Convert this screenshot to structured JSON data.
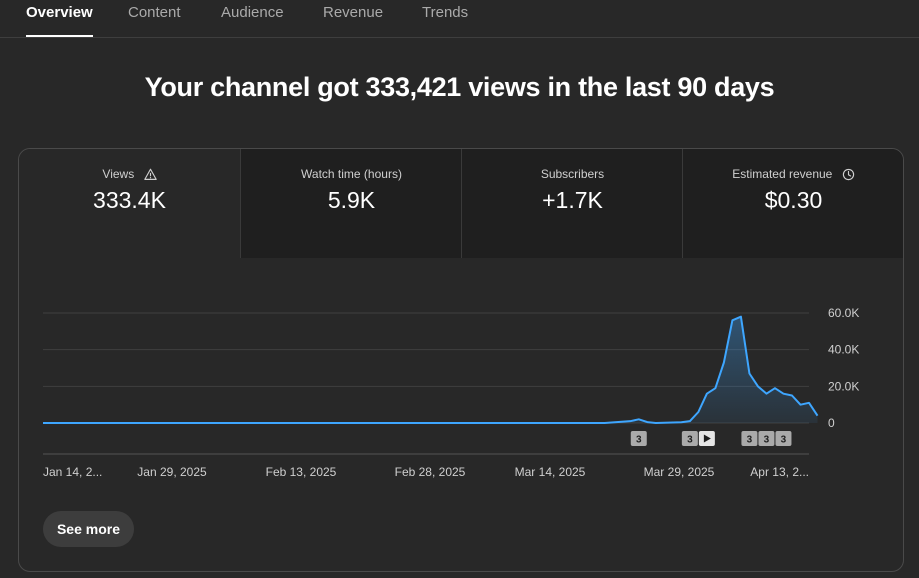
{
  "tabs": [
    {
      "label": "Overview",
      "active": true
    },
    {
      "label": "Content",
      "active": false
    },
    {
      "label": "Audience",
      "active": false
    },
    {
      "label": "Revenue",
      "active": false
    },
    {
      "label": "Trends",
      "active": false
    }
  ],
  "headline": "Your channel got 333,421 views in the last 90 days",
  "metrics": [
    {
      "label": "Views",
      "value": "333.4K",
      "icon": "warning-icon"
    },
    {
      "label": "Watch time (hours)",
      "value": "5.9K"
    },
    {
      "label": "Subscribers",
      "value": "+1.7K"
    },
    {
      "label": "Estimated revenue",
      "value": "$0.30",
      "icon": "clock-icon"
    }
  ],
  "chart_data": {
    "type": "area",
    "y_ticks": [
      "60.0K",
      "40.0K",
      "20.0K",
      "0"
    ],
    "ylim": [
      0,
      60000
    ],
    "x_ticks": [
      "Jan 14, 2...",
      "Jan 29, 2025",
      "Feb 13, 2025",
      "Feb 28, 2025",
      "Mar 14, 2025",
      "Mar 29, 2025",
      "Apr 13, 2..."
    ],
    "start_date": "2025-01-14",
    "end_date": "2025-04-14",
    "series": [
      {
        "color": "#3ea6ff",
        "points": [
          [
            "2025-01-14",
            0
          ],
          [
            "2025-03-21",
            0
          ],
          [
            "2025-03-24",
            1000
          ],
          [
            "2025-03-25",
            2000
          ],
          [
            "2025-03-26",
            500
          ],
          [
            "2025-03-27",
            0
          ],
          [
            "2025-03-30",
            400
          ],
          [
            "2025-03-31",
            1000
          ],
          [
            "2025-04-01",
            6000
          ],
          [
            "2025-04-02",
            16000
          ],
          [
            "2025-04-03",
            19000
          ],
          [
            "2025-04-04",
            33000
          ],
          [
            "2025-04-05",
            56000
          ],
          [
            "2025-04-06",
            58000
          ],
          [
            "2025-04-07",
            27000
          ],
          [
            "2025-04-08",
            20000
          ],
          [
            "2025-04-09",
            16000
          ],
          [
            "2025-04-10",
            19000
          ],
          [
            "2025-04-11",
            16000
          ],
          [
            "2025-04-12",
            15000
          ],
          [
            "2025-04-13",
            10000
          ],
          [
            "2025-04-14",
            11000
          ],
          [
            "2025-04-15",
            4000
          ]
        ]
      }
    ],
    "markers": [
      {
        "date": "2025-03-25",
        "label": "3",
        "kind": "upload"
      },
      {
        "date": "2025-03-31",
        "label": "3",
        "kind": "upload"
      },
      {
        "date": "2025-04-02",
        "label": "",
        "kind": "play"
      },
      {
        "date": "2025-04-07",
        "label": "3",
        "kind": "upload"
      },
      {
        "date": "2025-04-09",
        "label": "3",
        "kind": "upload"
      },
      {
        "date": "2025-04-11",
        "label": "3",
        "kind": "upload"
      }
    ],
    "grid": true
  },
  "see_more_label": "See more"
}
